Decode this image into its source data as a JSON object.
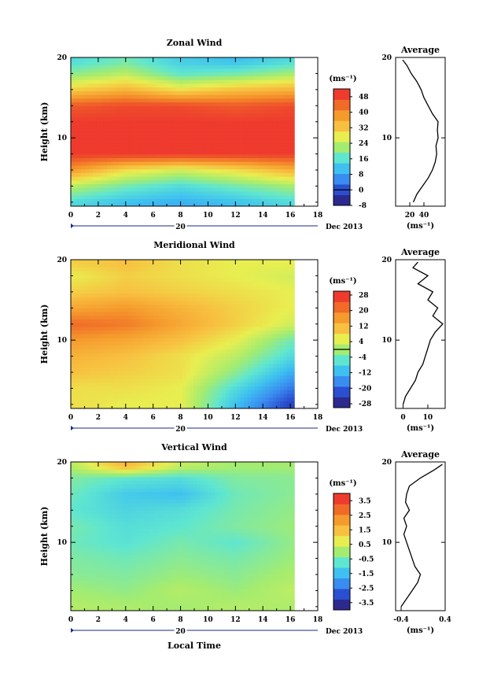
{
  "figure": {
    "date_label": "Dec 2013",
    "day_label": "20",
    "x_axis_label": "Local Time",
    "y_axis_label": "Height (km)",
    "average_title": "Average",
    "unit": "(ms⁻¹)",
    "x_ticks": [
      "0",
      "2",
      "4",
      "6",
      "8",
      "10",
      "12",
      "14",
      "16",
      "18"
    ],
    "y_ticks": [
      "10",
      "20"
    ]
  },
  "colorscale": [
    "#2c2a8e",
    "#2a4fd0",
    "#3a8df0",
    "#3ec1f0",
    "#5fe6d0",
    "#a4ec70",
    "#e8ee50",
    "#f8c040",
    "#f59a2d",
    "#f06a28",
    "#ee3b2e"
  ],
  "chart_data": [
    {
      "type": "heatmap",
      "title": "Zonal Wind",
      "xlabel": "",
      "ylabel": "Height (km)",
      "xlim": [
        0,
        18
      ],
      "ylim": [
        1.5,
        20
      ],
      "x_range_data": [
        0,
        16.3
      ],
      "colorbar": {
        "min": -8,
        "max": 52,
        "ticks": [
          "48",
          "40",
          "32",
          "24",
          "16",
          "8",
          "0",
          "-8"
        ],
        "zero_line": 0
      },
      "heights_km": [
        2,
        4,
        6,
        8,
        10,
        12,
        14,
        16,
        18,
        19.5
      ],
      "times_h": [
        0,
        4,
        8,
        12,
        16
      ],
      "values": [
        [
          14,
          10,
          8,
          10,
          14
        ],
        [
          24,
          18,
          14,
          18,
          22
        ],
        [
          40,
          30,
          26,
          30,
          36
        ],
        [
          52,
          52,
          52,
          52,
          52
        ],
        [
          52,
          52,
          52,
          52,
          52
        ],
        [
          52,
          52,
          52,
          52,
          52
        ],
        [
          48,
          50,
          50,
          48,
          50
        ],
        [
          32,
          36,
          30,
          34,
          36
        ],
        [
          20,
          24,
          16,
          18,
          22
        ],
        [
          14,
          18,
          12,
          10,
          14
        ]
      ],
      "average_profile": {
        "xlim": [
          0,
          70
        ],
        "x_ticks": [
          "20",
          "40"
        ],
        "points": [
          [
            25,
            2
          ],
          [
            30,
            3
          ],
          [
            38,
            4
          ],
          [
            46,
            5
          ],
          [
            52,
            6
          ],
          [
            56,
            7
          ],
          [
            58,
            8
          ],
          [
            57,
            9
          ],
          [
            60,
            10
          ],
          [
            59,
            11
          ],
          [
            60,
            12
          ],
          [
            52,
            13
          ],
          [
            46,
            14
          ],
          [
            40,
            15
          ],
          [
            36,
            16
          ],
          [
            30,
            17
          ],
          [
            22,
            18
          ],
          [
            16,
            19
          ],
          [
            10,
            19.7
          ]
        ]
      }
    },
    {
      "type": "heatmap",
      "title": "Meridional Wind",
      "xlabel": "",
      "ylabel": "Height (km)",
      "xlim": [
        0,
        18
      ],
      "ylim": [
        1.5,
        20
      ],
      "x_range_data": [
        0,
        16.3
      ],
      "colorbar": {
        "min": -30,
        "max": 30,
        "ticks": [
          "28",
          "20",
          "12",
          "4",
          "-4",
          "-12",
          "-20",
          "-28"
        ],
        "zero_line": 0
      },
      "heights_km": [
        2,
        4,
        6,
        8,
        10,
        12,
        14,
        16,
        18,
        19.5
      ],
      "times_h": [
        0,
        4,
        8,
        12,
        16
      ],
      "values": [
        [
          8,
          6,
          6,
          -12,
          -26
        ],
        [
          8,
          8,
          6,
          -8,
          -20
        ],
        [
          12,
          10,
          8,
          -2,
          -14
        ],
        [
          14,
          12,
          8,
          2,
          -8
        ],
        [
          18,
          16,
          12,
          6,
          -4
        ],
        [
          24,
          22,
          16,
          10,
          4
        ],
        [
          16,
          18,
          14,
          10,
          6
        ],
        [
          10,
          12,
          10,
          8,
          6
        ],
        [
          6,
          10,
          8,
          6,
          4
        ],
        [
          10,
          12,
          8,
          6,
          6
        ]
      ],
      "average_profile": {
        "xlim": [
          -3,
          17
        ],
        "x_ticks": [
          "0",
          "10"
        ],
        "points": [
          [
            0,
            2
          ],
          [
            1,
            3
          ],
          [
            3,
            4
          ],
          [
            5,
            5
          ],
          [
            6,
            6
          ],
          [
            8,
            7
          ],
          [
            9,
            8
          ],
          [
            10,
            9
          ],
          [
            11,
            10
          ],
          [
            13,
            11
          ],
          [
            16,
            12
          ],
          [
            12,
            13
          ],
          [
            14,
            14
          ],
          [
            10,
            15
          ],
          [
            12,
            16
          ],
          [
            6,
            17
          ],
          [
            10,
            18
          ],
          [
            4,
            19
          ],
          [
            6,
            19.7
          ]
        ]
      }
    },
    {
      "type": "heatmap",
      "title": "Vertical Wind",
      "xlabel": "Local Time",
      "ylabel": "Height (km)",
      "xlim": [
        0,
        18
      ],
      "ylim": [
        1.5,
        20
      ],
      "x_range_data": [
        0,
        16.3
      ],
      "colorbar": {
        "min": -4,
        "max": 4,
        "ticks": [
          "3.5",
          "2.5",
          "1.5",
          "0.5",
          "-0.5",
          "-1.5",
          "-2.5",
          "-3.5"
        ],
        "zero_line": null
      },
      "heights_km": [
        2,
        4,
        6,
        8,
        10,
        12,
        14,
        16,
        18,
        19.5
      ],
      "times_h": [
        0,
        4,
        8,
        12,
        16
      ],
      "values": [
        [
          0.2,
          0.1,
          0.0,
          0.2,
          0.1
        ],
        [
          0.0,
          -0.2,
          0.2,
          -0.1,
          0.3
        ],
        [
          -0.3,
          -0.4,
          -0.1,
          -0.3,
          0.1
        ],
        [
          -0.4,
          -0.6,
          -0.3,
          -0.5,
          -0.1
        ],
        [
          -0.6,
          -0.9,
          -0.5,
          -0.8,
          -0.2
        ],
        [
          -0.5,
          -1.0,
          -0.8,
          -0.4,
          -0.1
        ],
        [
          -0.8,
          -1.2,
          -1.0,
          -0.5,
          -0.2
        ],
        [
          -0.6,
          -1.4,
          -1.6,
          -0.6,
          -0.3
        ],
        [
          -0.4,
          -0.8,
          -1.0,
          -0.4,
          -0.3
        ],
        [
          0.2,
          1.8,
          0.4,
          0.0,
          0.0
        ]
      ],
      "average_profile": {
        "xlim": [
          -0.5,
          0.4
        ],
        "x_ticks": [
          "-0.4",
          "0.4"
        ],
        "points": [
          [
            -0.4,
            2
          ],
          [
            -0.3,
            3
          ],
          [
            -0.2,
            4
          ],
          [
            -0.1,
            5
          ],
          [
            -0.05,
            6
          ],
          [
            -0.15,
            7
          ],
          [
            -0.2,
            8
          ],
          [
            -0.25,
            9
          ],
          [
            -0.3,
            10
          ],
          [
            -0.35,
            11
          ],
          [
            -0.3,
            12
          ],
          [
            -0.35,
            13
          ],
          [
            -0.25,
            14
          ],
          [
            -0.32,
            15
          ],
          [
            -0.3,
            16
          ],
          [
            -0.25,
            17
          ],
          [
            -0.05,
            18
          ],
          [
            0.2,
            19
          ],
          [
            0.35,
            19.7
          ]
        ]
      }
    }
  ]
}
